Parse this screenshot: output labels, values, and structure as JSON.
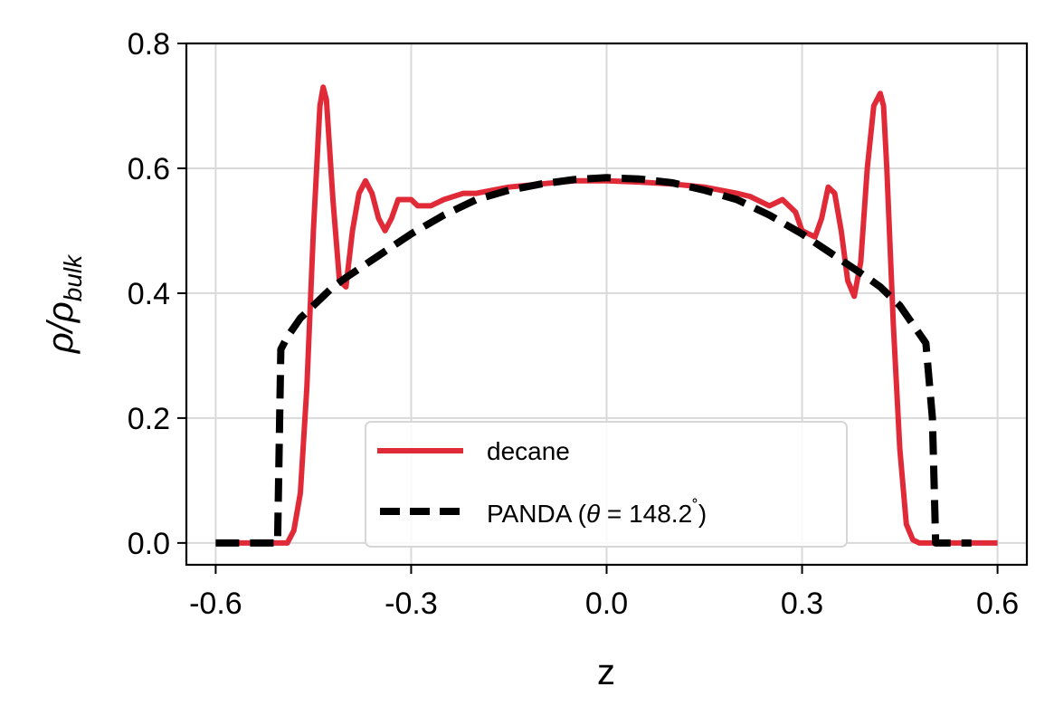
{
  "chart_data": {
    "type": "line",
    "xlabel": "z",
    "ylabel": "ρ/ρ",
    "ylabel_sub": "bulk",
    "xlim": [
      -0.645,
      0.645
    ],
    "ylim": [
      -0.035,
      0.8
    ],
    "x_ticks": [
      -0.6,
      -0.3,
      0.0,
      0.3,
      0.6
    ],
    "x_tick_labels": [
      "-0.6",
      "-0.3",
      "0.0",
      "0.3",
      "0.6"
    ],
    "y_ticks": [
      0.0,
      0.2,
      0.4,
      0.6,
      0.8
    ],
    "y_tick_labels": [
      "0.0",
      "0.2",
      "0.4",
      "0.6",
      "0.8"
    ],
    "grid": true,
    "legend_position": "lower center",
    "series": [
      {
        "name": "decane",
        "color": "#e02a38",
        "style": "solid",
        "x": [
          -0.6,
          -0.5,
          -0.49,
          -0.48,
          -0.47,
          -0.46,
          -0.45,
          -0.44,
          -0.435,
          -0.43,
          -0.42,
          -0.41,
          -0.4,
          -0.39,
          -0.38,
          -0.37,
          -0.36,
          -0.35,
          -0.34,
          -0.33,
          -0.32,
          -0.3,
          -0.29,
          -0.27,
          -0.25,
          -0.22,
          -0.2,
          -0.15,
          -0.1,
          -0.05,
          0.0,
          0.05,
          0.1,
          0.15,
          0.2,
          0.22,
          0.25,
          0.27,
          0.29,
          0.3,
          0.32,
          0.33,
          0.34,
          0.35,
          0.36,
          0.37,
          0.38,
          0.39,
          0.4,
          0.41,
          0.42,
          0.425,
          0.43,
          0.44,
          0.45,
          0.46,
          0.47,
          0.48,
          0.49,
          0.5,
          0.6
        ],
        "values": [
          0.0,
          0.0,
          0.0,
          0.02,
          0.08,
          0.25,
          0.5,
          0.7,
          0.73,
          0.71,
          0.55,
          0.42,
          0.41,
          0.5,
          0.56,
          0.58,
          0.56,
          0.52,
          0.5,
          0.52,
          0.55,
          0.55,
          0.54,
          0.54,
          0.55,
          0.56,
          0.56,
          0.57,
          0.575,
          0.58,
          0.58,
          0.578,
          0.575,
          0.57,
          0.56,
          0.555,
          0.54,
          0.55,
          0.53,
          0.5,
          0.49,
          0.52,
          0.57,
          0.56,
          0.5,
          0.42,
          0.395,
          0.45,
          0.6,
          0.7,
          0.72,
          0.7,
          0.6,
          0.35,
          0.15,
          0.03,
          0.005,
          0.0,
          0.0,
          0.0,
          0.0
        ]
      },
      {
        "name": "PANDA (θ = 148.2˚)",
        "color": "#000000",
        "style": "dashed",
        "x": [
          -0.6,
          -0.505,
          -0.5,
          -0.49,
          -0.47,
          -0.45,
          -0.42,
          -0.4,
          -0.35,
          -0.3,
          -0.25,
          -0.2,
          -0.15,
          -0.1,
          -0.05,
          0.0,
          0.05,
          0.1,
          0.15,
          0.2,
          0.25,
          0.3,
          0.35,
          0.4,
          0.42,
          0.45,
          0.47,
          0.49,
          0.5,
          0.505,
          0.56
        ],
        "values": [
          0.0,
          0.0,
          0.31,
          0.33,
          0.36,
          0.38,
          0.41,
          0.425,
          0.46,
          0.495,
          0.525,
          0.55,
          0.565,
          0.575,
          0.582,
          0.585,
          0.583,
          0.577,
          0.565,
          0.55,
          0.525,
          0.495,
          0.46,
          0.425,
          0.41,
          0.38,
          0.35,
          0.32,
          0.2,
          0.0,
          0.0
        ]
      }
    ],
    "legend": {
      "entries": [
        "decane",
        "PANDA (θ = 148.2˚)"
      ],
      "panda_prefix": "PANDA (",
      "panda_theta": "θ",
      "panda_suffix": " = 148.2",
      "panda_degree": "˚",
      "panda_close": ")"
    }
  }
}
